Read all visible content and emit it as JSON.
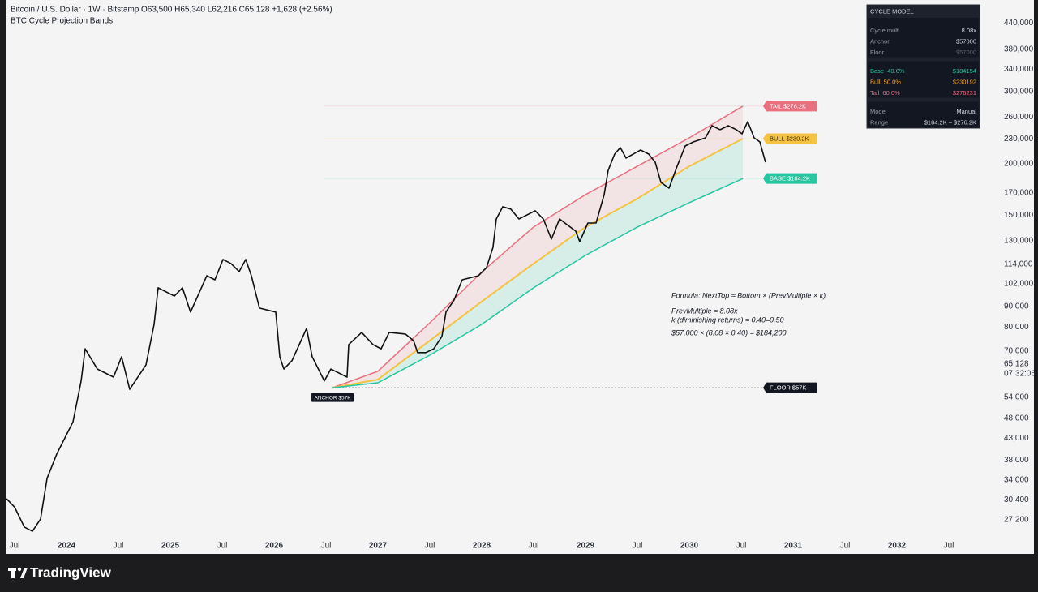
{
  "chart_data": {
    "type": "line",
    "title": "Bitcoin / U.S. Dollar · 1W · Bitstamp",
    "quote": "O63,500 H65,340 L62,216 C65,128 +1,628 (+2.56%)",
    "subtitle": "BTC Cycle Projection Bands",
    "log_y": true,
    "xlim": [
      2023.422,
      2032.969
    ],
    "ylim": [
      22460,
      500900
    ],
    "xticks": [
      {
        "value": 2023.5,
        "label": "Jul"
      },
      {
        "value": 2024,
        "label": "2024"
      },
      {
        "value": 2024.5,
        "label": "Jul"
      },
      {
        "value": 2025,
        "label": "2025"
      },
      {
        "value": 2025.5,
        "label": "Jul"
      },
      {
        "value": 2026,
        "label": "2026"
      },
      {
        "value": 2026.5,
        "label": "Jul"
      },
      {
        "value": 2027,
        "label": "2027"
      },
      {
        "value": 2027.5,
        "label": "Jul"
      },
      {
        "value": 2028,
        "label": "2028"
      },
      {
        "value": 2028.5,
        "label": "Jul"
      },
      {
        "value": 2029,
        "label": "2029"
      },
      {
        "value": 2029.5,
        "label": "Jul"
      },
      {
        "value": 2030,
        "label": "2030"
      },
      {
        "value": 2030.5,
        "label": "Jul"
      },
      {
        "value": 2031,
        "label": "2031"
      },
      {
        "value": 2031.5,
        "label": "Jul"
      },
      {
        "value": 2032,
        "label": "2032"
      },
      {
        "value": 2032.5,
        "label": "Jul"
      }
    ],
    "yticks": [
      {
        "value": 440000,
        "label": "440,000"
      },
      {
        "value": 380000,
        "label": "380,000"
      },
      {
        "value": 340000,
        "label": "340,000"
      },
      {
        "value": 300000,
        "label": "300,000"
      },
      {
        "value": 260000,
        "label": "260,000"
      },
      {
        "value": 230000,
        "label": "230,000"
      },
      {
        "value": 200000,
        "label": "200,000"
      },
      {
        "value": 170000,
        "label": "170,000"
      },
      {
        "value": 150000,
        "label": "150,000"
      },
      {
        "value": 130000,
        "label": "130,000"
      },
      {
        "value": 114000,
        "label": "114,000"
      },
      {
        "value": 102000,
        "label": "102,000"
      },
      {
        "value": 90000,
        "label": "90,000"
      },
      {
        "value": 80000,
        "label": "80,000"
      },
      {
        "value": 70000,
        "label": "70,000"
      },
      {
        "value": 54000,
        "label": "54,000"
      },
      {
        "value": 48000,
        "label": "48,000"
      },
      {
        "value": 43000,
        "label": "43,000"
      },
      {
        "value": 38000,
        "label": "38,000"
      },
      {
        "value": 34000,
        "label": "34,000"
      },
      {
        "value": 30400,
        "label": "30,400"
      },
      {
        "value": 27200,
        "label": "27,200"
      }
    ],
    "last_price": {
      "value": 65128,
      "label": "65,128"
    },
    "countdown": "07:32:06",
    "price": {
      "color": "#111111",
      "x": [
        2023.422,
        2023.5,
        2023.594,
        2023.672,
        2023.75,
        2023.813,
        2023.906,
        2023.984,
        2024.063,
        2024.141,
        2024.18,
        2024.297,
        2024.453,
        2024.531,
        2024.609,
        2024.766,
        2024.844,
        2024.883,
        2025.039,
        2025.117,
        2025.195,
        2025.352,
        2025.43,
        2025.508,
        2025.586,
        2025.664,
        2025.727,
        2025.781,
        2025.859,
        2026.016,
        2026.055,
        2026.094,
        2026.172,
        2026.313,
        2026.367,
        2026.484,
        2026.547,
        2026.703,
        2026.719,
        2026.844,
        2026.953,
        2027.031,
        2027.109,
        2027.266,
        2027.344,
        2027.383,
        2027.461,
        2027.539,
        2027.617,
        2027.656,
        2027.734,
        2027.813,
        2027.969,
        2028.047,
        2028.109,
        2028.141,
        2028.203,
        2028.281,
        2028.359,
        2028.438,
        2028.516,
        2028.594,
        2028.672,
        2028.75,
        2028.906,
        2028.945,
        2029.023,
        2029.102,
        2029.18,
        2029.219,
        2029.281,
        2029.336,
        2029.391,
        2029.531,
        2029.609,
        2029.672,
        2029.727,
        2029.805,
        2029.883,
        2029.961,
        2030.039,
        2030.156,
        2030.219,
        2030.297,
        2030.375,
        2030.453,
        2030.508,
        2030.563,
        2030.625,
        2030.68,
        2030.734
      ],
      "values": [
        30600,
        29200,
        26100,
        25500,
        27300,
        34300,
        39300,
        43000,
        47100,
        59200,
        70900,
        63300,
        60500,
        67800,
        56500,
        64800,
        81300,
        99800,
        95300,
        99800,
        87100,
        106800,
        104400,
        117000,
        114300,
        109300,
        117000,
        106800,
        89100,
        87100,
        67800,
        63300,
        66300,
        79500,
        67800,
        59200,
        63300,
        60500,
        72600,
        77700,
        72600,
        70900,
        77700,
        77000,
        74200,
        69400,
        69400,
        70900,
        76000,
        87100,
        93200,
        104400,
        106800,
        111800,
        125200,
        146800,
        157200,
        155100,
        146800,
        150200,
        153700,
        146800,
        131100,
        146800,
        137100,
        129300,
        143500,
        143500,
        168200,
        192900,
        211200,
        219000,
        206500,
        216100,
        211200,
        201800,
        180200,
        174500,
        197300,
        221000,
        226100,
        231300,
        247600,
        242100,
        247600,
        242100,
        236600,
        253300,
        231300,
        226100,
        201800
      ]
    },
    "bands": [
      {
        "label": "TAIL $276.2K",
        "color": "#e8707f",
        "x": [
          2026.563,
          2027,
          2027.5,
          2028,
          2028.5,
          2029,
          2029.5,
          2030,
          2030.516
        ],
        "values": [
          57000,
          62500,
          82000,
          109000,
          140300,
          168200,
          197300,
          231300,
          276231
        ]
      },
      {
        "label": "BULL $230.2K",
        "color": "#f5c242",
        "x": [
          2026.563,
          2027,
          2027.5,
          2028,
          2028.5,
          2029,
          2029.5,
          2030,
          2030.516
        ],
        "values": [
          57000,
          59700,
          74200,
          92400,
          114300,
          140300,
          164500,
          197300,
          230192
        ]
      },
      {
        "label": "BASE $184.2K",
        "color": "#26c6a0",
        "x": [
          2026.563,
          2027,
          2027.5,
          2028,
          2028.5,
          2029,
          2029.5,
          2030,
          2030.516
        ],
        "values": [
          57000,
          58600,
          68400,
          81300,
          99800,
          119700,
          140300,
          160800,
          184154
        ]
      }
    ],
    "anchor": {
      "label": "ANCHOR $57K",
      "x": 2026.563,
      "value": 57000
    },
    "floor": {
      "label": "FLOOR $57K",
      "value": 57000
    },
    "notes": [
      "Formula: NextTop ≈ Bottom × (PrevMultiple × k)",
      "PrevMultiple ≈ 8.08x",
      "k (diminishing returns) ≈ 0.40–0.50",
      "$57,000 × (8.08 × 0.40) ≈ $184,200"
    ],
    "panel": {
      "title": "CYCLE MODEL",
      "groups": [
        [
          {
            "label": "Cycle mult",
            "value": "8.08x",
            "color": "#d1d4dc"
          },
          {
            "label": "Anchor",
            "value": "$57000",
            "color": "#d1d4dc"
          },
          {
            "label": "Floor",
            "value": "$57000",
            "color": "#5d606b"
          }
        ],
        [
          {
            "label": "Base  40.0%",
            "value": "$184154",
            "color": "#26c6a0"
          },
          {
            "label": "Bull  50.0%",
            "value": "$230192",
            "color": "#f5a623"
          },
          {
            "label": "Tail  60.0%",
            "value": "$276231",
            "color": "#f06b7d"
          }
        ],
        [
          {
            "label": "Mode",
            "value": "Manual",
            "color": "#d1d4dc"
          },
          {
            "label": "Range",
            "value": "$184.2K – $276.2K",
            "color": "#d1d4dc"
          }
        ]
      ]
    },
    "brand": "TradingView"
  }
}
